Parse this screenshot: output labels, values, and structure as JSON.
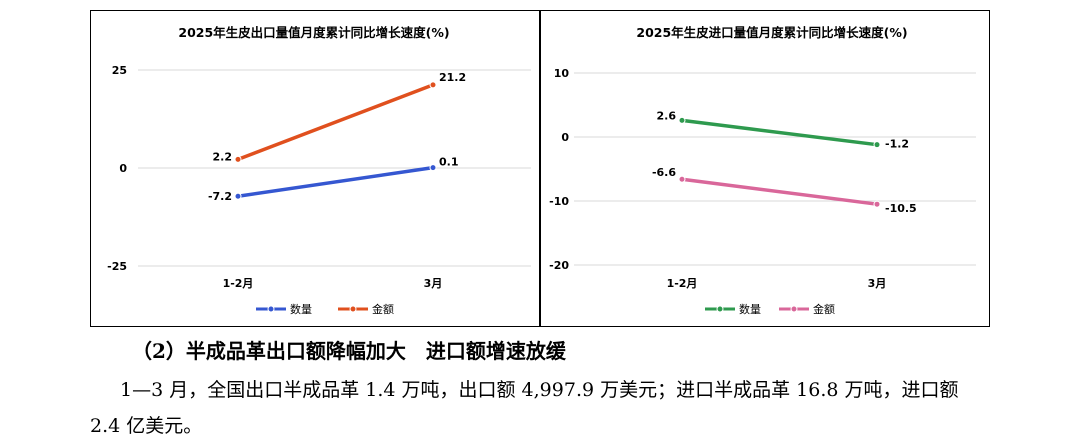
{
  "chart_data": [
    {
      "type": "line",
      "title": "2025年生皮出口量值月度累计同比增长速度(%)",
      "categories": [
        "1-2月",
        "3月"
      ],
      "ylim": [
        -25,
        25
      ],
      "yticks": [
        25,
        0,
        -25
      ],
      "ytick_labels": [
        "25",
        "0",
        "-25"
      ],
      "grid": true,
      "legend_position": "bottom",
      "series": [
        {
          "name": "数量",
          "color": "#3557d1",
          "values": [
            -7.2,
            0.1
          ],
          "labels": [
            "-7.2",
            "0.1"
          ]
        },
        {
          "name": "金额",
          "color": "#e0501e",
          "values": [
            2.2,
            21.2
          ],
          "labels": [
            "2.2",
            "21.2"
          ]
        }
      ]
    },
    {
      "type": "line",
      "title": "2025年生皮进口量值月度累计同比增长速度(%)",
      "categories": [
        "1-2月",
        "3月"
      ],
      "ylim": [
        -20,
        10
      ],
      "yticks": [
        10,
        0,
        -10,
        -20
      ],
      "ytick_labels": [
        "10",
        "0",
        "-10",
        "-20"
      ],
      "grid": true,
      "legend_position": "bottom",
      "series": [
        {
          "name": "数量",
          "color": "#2e9a4e",
          "values": [
            2.6,
            -1.2
          ],
          "labels": [
            "2.6",
            "-1.2"
          ]
        },
        {
          "name": "金额",
          "color": "#d9679a",
          "values": [
            -6.6,
            -10.5
          ],
          "labels": [
            "-6.6",
            "-10.5"
          ]
        }
      ]
    }
  ],
  "section": {
    "heading": "（2）半成品革出口额降幅加大　进口额增速放缓",
    "body": "1—3 月，全国出口半成品革 1.4 万吨，出口额 4,997.9 万美元；进口半成品革 16.8 万吨，进口额 2.4 亿美元。"
  }
}
